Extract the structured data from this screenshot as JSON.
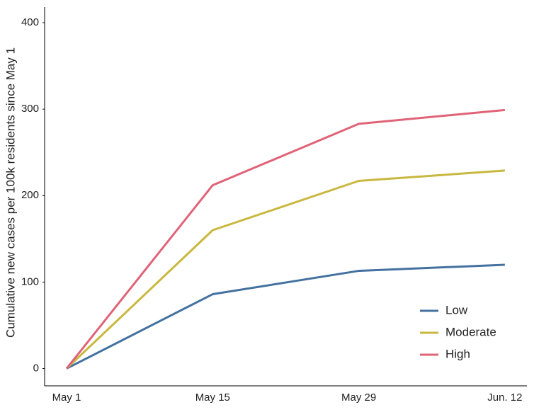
{
  "chart_data": {
    "type": "line",
    "y_label": "Cumulative new cases per 100k residents since May 1",
    "categories": [
      "May 1",
      "May 15",
      "May 29",
      "Jun. 12"
    ],
    "series": [
      {
        "name": "Low",
        "color": "#44719f",
        "values": [
          0,
          86,
          113,
          120
        ]
      },
      {
        "name": "Moderate",
        "color": "#c9b83f",
        "values": [
          0,
          160,
          217,
          229
        ]
      },
      {
        "name": "High",
        "color": "#e06377",
        "values": [
          0,
          212,
          283,
          299
        ]
      }
    ],
    "ylim": [
      -20,
      418
    ],
    "yticks": [
      0,
      100,
      200,
      300,
      400
    ],
    "legend": "lower right"
  }
}
